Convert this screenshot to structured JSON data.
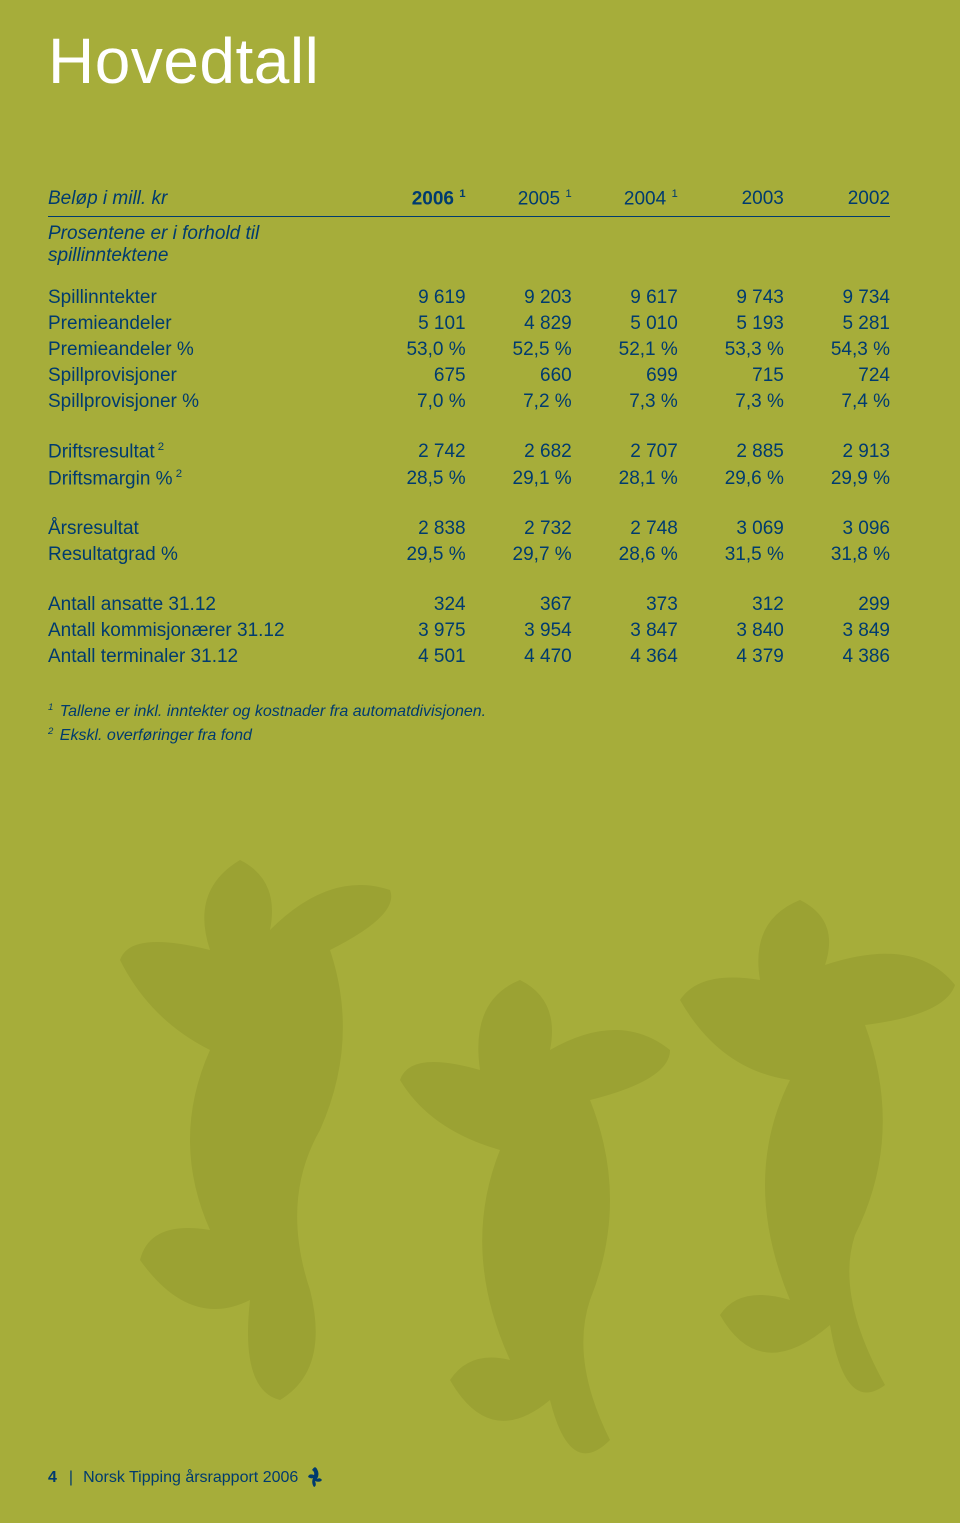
{
  "title": "Hovedtall",
  "header": {
    "label": "Beløp i mill. kr",
    "years": [
      "2006",
      "2005",
      "2004",
      "2003",
      "2002"
    ],
    "year_sup": [
      "1",
      "1",
      "1",
      "",
      ""
    ],
    "bold_index": 0
  },
  "subtitle": "Prosentene er i forhold til spillinntektene",
  "sections": [
    {
      "rows": [
        {
          "label": "Spillinntekter",
          "sup": "",
          "vals": [
            "9 619",
            "9 203",
            "9 617",
            "9 743",
            "9 734"
          ]
        },
        {
          "label": "Premieandeler",
          "sup": "",
          "vals": [
            "5 101",
            "4 829",
            "5 010",
            "5 193",
            "5 281"
          ]
        },
        {
          "label": "Premieandeler %",
          "sup": "",
          "vals": [
            "53,0 %",
            "52,5 %",
            "52,1 %",
            "53,3 %",
            "54,3 %"
          ]
        },
        {
          "label": "Spillprovisjoner",
          "sup": "",
          "vals": [
            "675",
            "660",
            "699",
            "715",
            "724"
          ]
        },
        {
          "label": "Spillprovisjoner %",
          "sup": "",
          "vals": [
            "7,0 %",
            "7,2 %",
            "7,3 %",
            "7,3 %",
            "7,4 %"
          ]
        }
      ]
    },
    {
      "rows": [
        {
          "label": "Driftsresultat",
          "sup": "2",
          "vals": [
            "2 742",
            "2 682",
            "2 707",
            "2 885",
            "2 913"
          ]
        },
        {
          "label": "Driftsmargin %",
          "sup": "2",
          "vals": [
            "28,5 %",
            "29,1 %",
            "28,1 %",
            "29,6 %",
            "29,9 %"
          ]
        }
      ]
    },
    {
      "rows": [
        {
          "label": "Årsresultat",
          "sup": "",
          "vals": [
            "2 838",
            "2 732",
            "2 748",
            "3 069",
            "3 096"
          ]
        },
        {
          "label": "Resultatgrad %",
          "sup": "",
          "vals": [
            "29,5 %",
            "29,7 %",
            "28,6 %",
            "31,5 %",
            "31,8 %"
          ]
        }
      ]
    },
    {
      "rows": [
        {
          "label": "Antall ansatte 31.12",
          "sup": "",
          "vals": [
            "324",
            "367",
            "373",
            "312",
            "299"
          ]
        },
        {
          "label": "Antall kommisjonærer 31.12",
          "sup": "",
          "vals": [
            "3 975",
            "3 954",
            "3 847",
            "3 840",
            "3 849"
          ]
        },
        {
          "label": "Antall terminaler 31.12",
          "sup": "",
          "vals": [
            "4 501",
            "4 470",
            "4 364",
            "4 379",
            "4 386"
          ]
        }
      ]
    }
  ],
  "footnotes": [
    {
      "num": "1",
      "text": "Tallene er inkl. inntekter og kostnader fra automatdivisjonen."
    },
    {
      "num": "2",
      "text": "Ekskl. overføringer fra fond"
    }
  ],
  "footer": {
    "page": "4",
    "text": "Norsk Tipping årsrapport 2006"
  },
  "colors": {
    "bg": "#a6ad3a",
    "title": "#ffffff",
    "text": "#003b6f",
    "figure_fill": "#9ba233"
  }
}
